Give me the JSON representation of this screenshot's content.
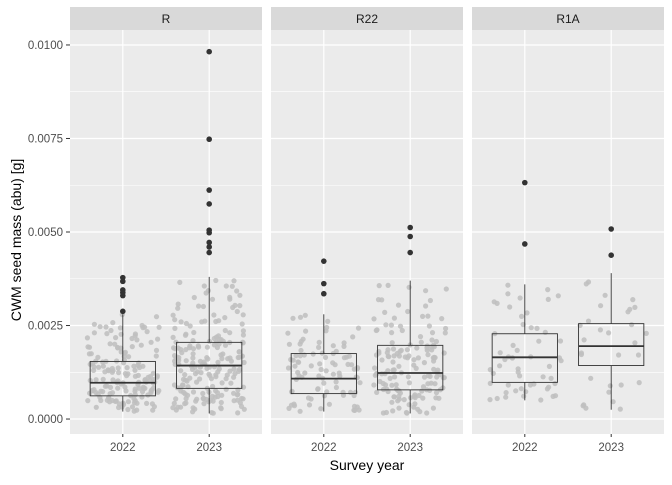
{
  "chart_data": {
    "type": "box",
    "ylabel": "CWM seed mass (abu) [g]",
    "xlabel": "Survey year",
    "ylim": [
      -0.0004,
      0.0104
    ],
    "yticks": [
      0.0,
      0.0025,
      0.005,
      0.0075,
      0.01
    ],
    "ytick_labels": [
      "0.0000",
      "0.0025",
      "0.0050",
      "0.0075",
      "0.0100"
    ],
    "categories": [
      "2022",
      "2023"
    ],
    "grid": true,
    "colors": {
      "panel_bg": "#EBEBEB",
      "strip_bg": "#D9D9D9",
      "grid": "#FFFFFF",
      "jitter_points": "#BEBEBE",
      "outliers": "#333333",
      "box_line": "#333333"
    },
    "panels": [
      {
        "name": "R",
        "boxes": [
          {
            "year": "2022",
            "q1": 0.00062,
            "median": 0.00097,
            "q3": 0.00154,
            "whisker_low": 0.0002,
            "whisker_high": 0.0028,
            "outliers": [
              0.00288,
              0.0033,
              0.00338,
              0.00345,
              0.00368,
              0.00378
            ],
            "n_points": 160
          },
          {
            "year": "2023",
            "q1": 0.00082,
            "median": 0.00143,
            "q3": 0.00205,
            "whisker_low": 0.00015,
            "whisker_high": 0.0038,
            "outliers": [
              0.00445,
              0.0046,
              0.00472,
              0.00498,
              0.00505,
              0.00575,
              0.00612,
              0.00748,
              0.00982
            ],
            "n_points": 200
          }
        ]
      },
      {
        "name": "R22",
        "boxes": [
          {
            "year": "2022",
            "q1": 0.00068,
            "median": 0.00108,
            "q3": 0.00175,
            "whisker_low": 0.0002,
            "whisker_high": 0.0028,
            "outliers": [
              0.00335,
              0.00362,
              0.00422
            ],
            "n_points": 90
          },
          {
            "year": "2023",
            "q1": 0.00078,
            "median": 0.00123,
            "q3": 0.00197,
            "whisker_low": 0.00015,
            "whisker_high": 0.0037,
            "outliers": [
              0.00445,
              0.00488,
              0.00512
            ],
            "n_points": 150
          }
        ]
      },
      {
        "name": "R1A",
        "boxes": [
          {
            "year": "2022",
            "q1": 0.00098,
            "median": 0.00165,
            "q3": 0.00228,
            "whisker_low": 0.0005,
            "whisker_high": 0.0036,
            "outliers": [
              0.00468,
              0.00632
            ],
            "n_points": 55
          },
          {
            "year": "2023",
            "q1": 0.00143,
            "median": 0.00195,
            "q3": 0.00255,
            "whisker_low": 0.00025,
            "whisker_high": 0.0039,
            "outliers": [
              0.00438,
              0.00508
            ],
            "n_points": 30
          }
        ]
      }
    ]
  }
}
